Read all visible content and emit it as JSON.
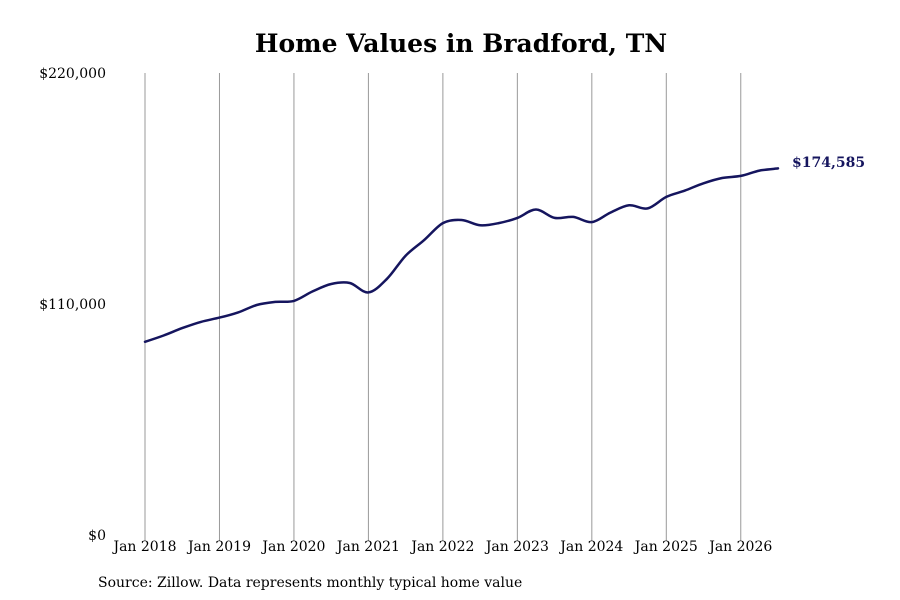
{
  "chart_data": {
    "type": "line",
    "title": "Home Values in Bradford, TN",
    "source": "Source: Zillow. Data represents monthly typical home value",
    "line_color": "#15155e",
    "grid_color": "#999999",
    "grid": "vertical",
    "ylim": [
      0,
      220000
    ],
    "yticks": [
      {
        "value": 0,
        "label": "$0"
      },
      {
        "value": 110000,
        "label": "$110,000"
      },
      {
        "value": 220000,
        "label": "$220,000"
      }
    ],
    "xlim": [
      "2018-01",
      "2026-07"
    ],
    "xticks": [
      {
        "value": "2018-01",
        "label": "Jan 2018"
      },
      {
        "value": "2019-01",
        "label": "Jan 2019"
      },
      {
        "value": "2020-01",
        "label": "Jan 2020"
      },
      {
        "value": "2021-01",
        "label": "Jan 2021"
      },
      {
        "value": "2022-01",
        "label": "Jan 2022"
      },
      {
        "value": "2023-01",
        "label": "Jan 2023"
      },
      {
        "value": "2024-01",
        "label": "Jan 2024"
      },
      {
        "value": "2025-01",
        "label": "Jan 2025"
      },
      {
        "value": "2026-01",
        "label": "Jan 2026"
      }
    ],
    "end_label": "$174,585",
    "series": [
      {
        "x": [
          "2018-01",
          "2018-04",
          "2018-07",
          "2018-10",
          "2019-01",
          "2019-04",
          "2019-07",
          "2019-10",
          "2020-01",
          "2020-04",
          "2020-07",
          "2020-10",
          "2021-01",
          "2021-04",
          "2021-07",
          "2021-10",
          "2022-01",
          "2022-04",
          "2022-07",
          "2022-10",
          "2023-01",
          "2023-04",
          "2023-07",
          "2023-10",
          "2024-01",
          "2024-04",
          "2024-07",
          "2024-10",
          "2025-01",
          "2025-04",
          "2025-07",
          "2025-10",
          "2026-01",
          "2026-04",
          "2026-07"
        ],
        "values": [
          92000,
          95000,
          98500,
          101500,
          103500,
          106000,
          109500,
          111000,
          111500,
          116000,
          119500,
          120000,
          115500,
          122000,
          133000,
          140500,
          148500,
          150000,
          147500,
          148500,
          151000,
          155000,
          151000,
          151500,
          149000,
          153500,
          157000,
          155500,
          161000,
          164000,
          167500,
          170000,
          171000,
          173500,
          174585
        ]
      }
    ]
  }
}
